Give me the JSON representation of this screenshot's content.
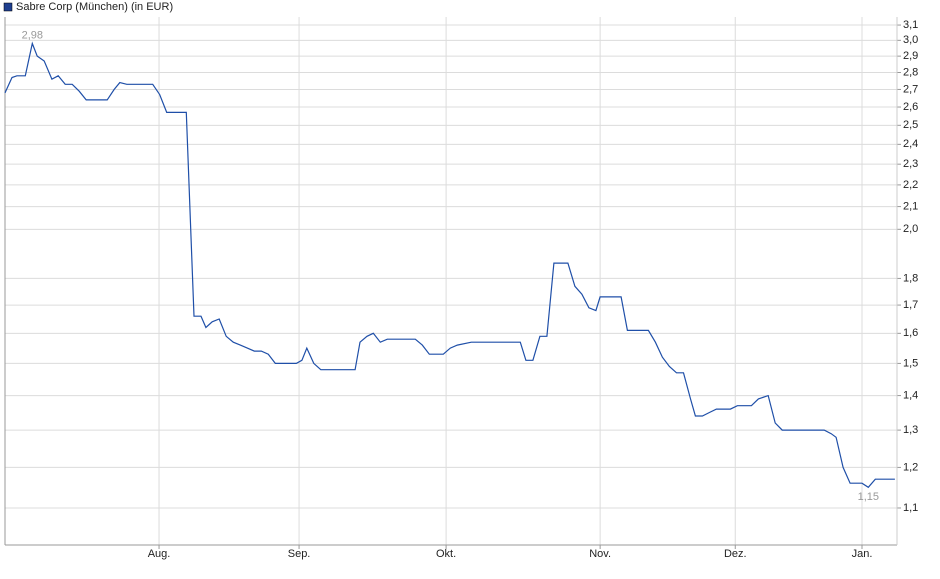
{
  "chart_data": {
    "type": "line",
    "legend": "Sabre Corp (München) (in EUR)",
    "x": [
      0,
      1,
      1.7,
      2.9,
      3.9,
      4.6,
      5.6,
      6.7,
      7.6,
      8.6,
      9.6,
      10.6,
      11.6,
      14.6,
      15.6,
      16.4,
      17.4,
      21.1,
      22.1,
      23.1,
      25.9,
      27,
      28,
      28.7,
      29.6,
      30.6,
      31.6,
      32.6,
      33.6,
      34.6,
      35.6,
      36.6,
      37.6,
      38.6,
      41.6,
      42.4,
      43.1,
      44.1,
      45.1,
      50,
      50.7,
      51.7,
      52.6,
      53.6,
      54.6,
      55.6,
      58.6,
      59.6,
      60.6,
      62.6,
      63.6,
      64.6,
      66.6,
      73.6,
      74.4,
      75.4,
      76.4,
      77.4,
      78.4,
      80.4,
      81.4,
      82.4,
      83.4,
      84.4,
      85,
      88,
      88.9,
      91.9,
      92.9,
      93.9,
      94.9,
      95.9,
      96.9,
      97.9,
      98.6,
      99.6,
      100.6,
      101.6,
      103.6,
      104.6,
      106.6,
      107.6,
      109,
      110,
      111,
      112,
      116,
      117,
      118,
      118.7,
      119.7,
      120.7,
      121.7,
      122.4,
      123.3,
      124.3,
      126.3,
      127.1
    ],
    "series": [
      {
        "name": "Sabre Corp (München) (in EUR)",
        "color": "#1f4fa8",
        "values": [
          2.68,
          2.77,
          2.78,
          2.78,
          2.98,
          2.9,
          2.87,
          2.76,
          2.78,
          2.73,
          2.73,
          2.69,
          2.64,
          2.64,
          2.7,
          2.74,
          2.73,
          2.73,
          2.67,
          2.57,
          2.57,
          1.66,
          1.66,
          1.62,
          1.64,
          1.65,
          1.59,
          1.57,
          1.56,
          1.55,
          1.54,
          1.54,
          1.53,
          1.5,
          1.5,
          1.51,
          1.55,
          1.5,
          1.48,
          1.48,
          1.57,
          1.59,
          1.6,
          1.57,
          1.58,
          1.58,
          1.58,
          1.56,
          1.53,
          1.53,
          1.55,
          1.56,
          1.57,
          1.57,
          1.51,
          1.51,
          1.59,
          1.59,
          1.86,
          1.86,
          1.77,
          1.74,
          1.69,
          1.68,
          1.73,
          1.73,
          1.61,
          1.61,
          1.57,
          1.52,
          1.49,
          1.47,
          1.47,
          1.39,
          1.34,
          1.34,
          1.35,
          1.36,
          1.36,
          1.37,
          1.37,
          1.39,
          1.4,
          1.32,
          1.3,
          1.3,
          1.3,
          1.3,
          1.29,
          1.28,
          1.2,
          1.16,
          1.16,
          1.16,
          1.15,
          1.17,
          1.17,
          1.17
        ]
      }
    ],
    "legend_color": "#1f3f8f",
    "annotations": [
      {
        "text": "2,98",
        "x": 3.9,
        "y": 2.98
      },
      {
        "text": "1,15",
        "x": 123.3,
        "y": 1.15
      }
    ],
    "xlim": [
      0,
      127.4
    ],
    "xticks": [
      {
        "value": 22,
        "label": "Aug."
      },
      {
        "value": 42,
        "label": "Sep."
      },
      {
        "value": 63,
        "label": "Okt."
      },
      {
        "value": 85,
        "label": "Nov."
      },
      {
        "value": 104.3,
        "label": "Dez."
      },
      {
        "value": 122.4,
        "label": "Jan."
      }
    ],
    "ylim": [
      1.016,
      3.154
    ],
    "log_y": true,
    "yticks": [
      {
        "value": 1.1,
        "label": "1,1"
      },
      {
        "value": 1.2,
        "label": "1,2"
      },
      {
        "value": 1.3,
        "label": "1,3"
      },
      {
        "value": 1.4,
        "label": "1,4"
      },
      {
        "value": 1.5,
        "label": "1,5"
      },
      {
        "value": 1.6,
        "label": "1,6"
      },
      {
        "value": 1.7,
        "label": "1,7"
      },
      {
        "value": 1.8,
        "label": "1,8"
      },
      {
        "value": 2.0,
        "label": "2,0"
      },
      {
        "value": 2.1,
        "label": "2,1"
      },
      {
        "value": 2.2,
        "label": "2,2"
      },
      {
        "value": 2.3,
        "label": "2,3"
      },
      {
        "value": 2.4,
        "label": "2,4"
      },
      {
        "value": 2.5,
        "label": "2,5"
      },
      {
        "value": 2.6,
        "label": "2,6"
      },
      {
        "value": 2.7,
        "label": "2,7"
      },
      {
        "value": 2.8,
        "label": "2,8"
      },
      {
        "value": 2.9,
        "label": "2,9"
      },
      {
        "value": 3.0,
        "label": "3,0"
      },
      {
        "value": 3.1,
        "label": "3,1"
      }
    ],
    "grid": true
  }
}
